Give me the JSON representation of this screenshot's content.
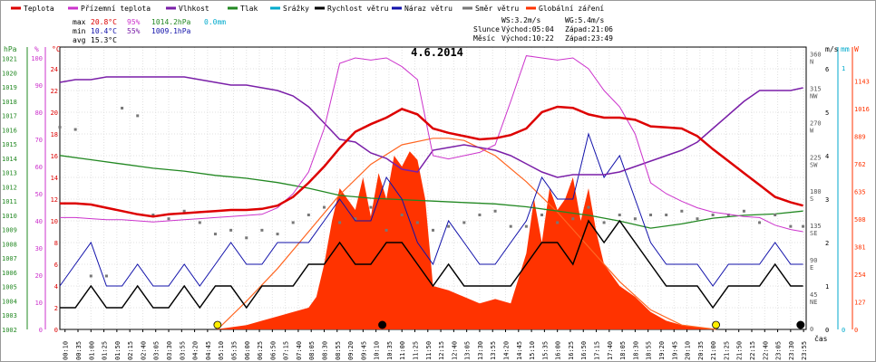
{
  "chart_data": {
    "type": "line",
    "title": "4.6.2014",
    "legend": {
      "placement": "top",
      "items": [
        {
          "key": "temp",
          "label": "Teplota",
          "color": "#dd0000"
        },
        {
          "key": "feel",
          "label": "Přízemní teplota",
          "color": "#cc33cc"
        },
        {
          "key": "hum",
          "label": "Vlhkost",
          "color": "#7a1fa8"
        },
        {
          "key": "press",
          "label": "Tlak",
          "color": "#228822"
        },
        {
          "key": "rain",
          "label": "Srážky",
          "color": "#00aacc"
        },
        {
          "key": "wind",
          "label": "Rychlost větru",
          "color": "#000000"
        },
        {
          "key": "gust",
          "label": "Náraz větru",
          "color": "#1111aa"
        },
        {
          "key": "dir",
          "label": "Směr větru",
          "color": "#777777"
        },
        {
          "key": "solar",
          "label": "Globální záření",
          "color": "#ff3300"
        }
      ]
    },
    "stats": {
      "max_label": "max",
      "max_temp": "20.8°C",
      "max_hum": "95%",
      "max_press": "1014.2hPa",
      "rain_total": "0.0mm",
      "min_label": "min",
      "min_temp": "10.4°C",
      "min_hum": "55%",
      "min_press": "1009.1hPa",
      "avg_label": "avg",
      "avg_temp": "15.3°C"
    },
    "sun_moon": {
      "ws": "WS:3.2m/s",
      "wg": "WG:5.4m/s",
      "sun_label": "Slunce",
      "sun_rise": "Východ:05:04",
      "sun_set": "Západ:21:06",
      "moon_label": "Měsíc",
      "moon_rise": "Východ:10:22",
      "moon_set": "Západ:23:49"
    },
    "axes": {
      "hpa_label": "hPa",
      "hum_label": "%",
      "temp_label": "°C",
      "wind_label": "m/s",
      "rain_label": "mm",
      "solar_label": "W",
      "time_label": "čas",
      "hpa_ticks": [
        "1002",
        "1003",
        "1004",
        "1005",
        "1006",
        "1007",
        "1008",
        "1009",
        "1010",
        "1011",
        "1012",
        "1013",
        "1014",
        "1015",
        "1016",
        "1017",
        "1018",
        "1019",
        "1020",
        "1021"
      ],
      "hum_ticks": [
        "0",
        "10",
        "20",
        "30",
        "40",
        "50",
        "60",
        "70",
        "80",
        "90",
        "100"
      ],
      "temp_ticks": [
        "0",
        "2",
        "4",
        "6",
        "8",
        "10",
        "12",
        "14",
        "16",
        "18",
        "20",
        "22",
        "24"
      ],
      "dir_ticks": [
        {
          "deg": "360",
          "dir": "N"
        },
        {
          "deg": "315",
          "dir": "NW"
        },
        {
          "deg": "270",
          "dir": "W"
        },
        {
          "deg": "225",
          "dir": "SW"
        },
        {
          "deg": "180",
          "dir": "S"
        },
        {
          "deg": "135",
          "dir": "SE"
        },
        {
          "deg": "90",
          "dir": "E"
        },
        {
          "deg": "45",
          "dir": "NE"
        },
        {
          "deg": "0",
          "dir": ""
        }
      ],
      "wind_ticks": [
        "0",
        "1",
        "2",
        "3",
        "4",
        "5",
        "6"
      ],
      "rain_ticks": [
        "0",
        "1"
      ],
      "solar_ticks": [
        "0",
        "127",
        "254",
        "381",
        "508",
        "635",
        "762",
        "889",
        "1016",
        "1143"
      ],
      "time_ticks": [
        "00:10",
        "00:35",
        "01:00",
        "01:25",
        "01:50",
        "02:15",
        "02:40",
        "03:05",
        "03:30",
        "03:55",
        "04:20",
        "04:45",
        "05:10",
        "05:35",
        "06:00",
        "06:25",
        "06:50",
        "07:15",
        "07:40",
        "08:05",
        "08:30",
        "08:55",
        "09:20",
        "09:45",
        "10:10",
        "10:35",
        "11:00",
        "11:25",
        "11:50",
        "12:15",
        "12:40",
        "13:05",
        "13:30",
        "13:55",
        "14:20",
        "14:45",
        "15:10",
        "15:35",
        "16:00",
        "16:25",
        "16:50",
        "17:15",
        "17:40",
        "18:05",
        "18:30",
        "18:55",
        "19:20",
        "19:45",
        "20:10",
        "20:35",
        "21:00",
        "21:25",
        "21:50",
        "22:15",
        "22:40",
        "23:05",
        "23:30",
        "23:55"
      ]
    },
    "series": [
      {
        "key": "temp",
        "name": "Teplota",
        "unit": "°C",
        "x_hours": [
          0,
          0.5,
          1,
          1.5,
          2,
          2.5,
          3,
          3.5,
          4,
          4.5,
          5,
          5.5,
          6,
          6.5,
          7,
          7.5,
          8,
          8.5,
          9,
          9.5,
          10,
          10.5,
          11,
          11.5,
          12,
          12.5,
          13,
          13.5,
          14,
          14.5,
          15,
          15.5,
          16,
          16.5,
          17,
          17.5,
          18,
          18.5,
          19,
          19.5,
          20,
          20.5,
          21,
          21.5,
          22,
          22.5,
          23,
          23.5,
          23.9
        ],
        "values": [
          11.6,
          11.6,
          11.5,
          11.2,
          10.9,
          10.6,
          10.4,
          10.6,
          10.7,
          10.8,
          10.9,
          11.0,
          11.0,
          11.1,
          11.4,
          12.2,
          13.5,
          15.0,
          16.7,
          18.2,
          18.9,
          19.5,
          20.3,
          19.8,
          18.5,
          18.1,
          17.8,
          17.5,
          17.6,
          17.9,
          18.5,
          20.0,
          20.5,
          20.4,
          19.8,
          19.5,
          19.5,
          19.3,
          18.7,
          18.6,
          18.5,
          17.8,
          16.6,
          15.5,
          14.4,
          13.3,
          12.2,
          11.7,
          11.4
        ]
      },
      {
        "key": "feel",
        "name": "Přízemní teplota",
        "unit": "°C",
        "x_hours": [
          0,
          0.5,
          1,
          1.5,
          2,
          2.5,
          3,
          3.5,
          4,
          4.5,
          5,
          5.5,
          6,
          6.5,
          7,
          7.5,
          8,
          8.5,
          9,
          9.5,
          10,
          10.5,
          11,
          11.5,
          12,
          12.5,
          13,
          13.5,
          14,
          14.5,
          15,
          15.5,
          16,
          16.5,
          17,
          17.5,
          18,
          18.5,
          19,
          19.5,
          20,
          20.5,
          21,
          21.5,
          22,
          22.5,
          23,
          23.5,
          23.9
        ],
        "values": [
          10.3,
          10.3,
          10.2,
          10.1,
          10.1,
          10.0,
          9.9,
          10.0,
          10.1,
          10.2,
          10.3,
          10.4,
          10.5,
          10.6,
          11.2,
          12.5,
          14.5,
          18.5,
          24.5,
          25.0,
          24.8,
          25.0,
          24.2,
          23.0,
          16.0,
          15.7,
          16.0,
          16.3,
          17.0,
          21.0,
          25.2,
          25.0,
          24.8,
          25.0,
          24.0,
          22.0,
          20.5,
          18.0,
          13.5,
          12.5,
          11.8,
          11.2,
          10.8,
          10.6,
          10.4,
          10.3,
          9.6,
          9.2,
          9.0
        ]
      },
      {
        "key": "hum",
        "name": "Vlhkost",
        "unit": "%",
        "x_hours": [
          0,
          0.5,
          1,
          1.5,
          2,
          2.5,
          3,
          3.5,
          4,
          4.5,
          5,
          5.5,
          6,
          6.5,
          7,
          7.5,
          8,
          8.5,
          9,
          9.5,
          10,
          10.5,
          11,
          11.5,
          12,
          12.5,
          13,
          13.5,
          14,
          14.5,
          15,
          15.5,
          16,
          16.5,
          17,
          17.5,
          18,
          18.5,
          19,
          19.5,
          20,
          20.5,
          21,
          21.5,
          22,
          22.5,
          23,
          23.5,
          23.9
        ],
        "values": [
          91,
          92,
          92,
          93,
          93,
          93,
          93,
          93,
          93,
          92,
          91,
          90,
          90,
          89,
          88,
          86,
          82,
          76,
          70,
          69,
          65,
          63,
          59,
          58,
          66,
          67,
          68,
          67,
          66,
          64,
          61,
          58,
          56,
          57,
          57,
          57,
          58,
          60,
          62,
          64,
          66,
          69,
          74,
          79,
          84,
          88,
          88,
          88,
          89
        ]
      },
      {
        "key": "press",
        "name": "Tlak",
        "unit": "hPa",
        "x_hours": [
          0,
          1,
          2,
          3,
          4,
          5,
          6,
          7,
          8,
          9,
          10,
          11,
          12,
          13,
          14,
          15,
          16,
          17,
          18,
          19,
          20,
          21,
          22,
          23,
          23.9
        ],
        "values": [
          1014.2,
          1013.9,
          1013.6,
          1013.3,
          1013.1,
          1012.8,
          1012.6,
          1012.3,
          1011.9,
          1011.4,
          1011.2,
          1011.1,
          1011.0,
          1010.9,
          1010.8,
          1010.6,
          1010.3,
          1010.0,
          1009.6,
          1009.1,
          1009.4,
          1009.8,
          1010.0,
          1010.1,
          1010.3
        ]
      },
      {
        "key": "wind",
        "name": "Rychlost větru",
        "unit": "m/s",
        "x_hours": [
          0,
          0.5,
          1,
          1.5,
          2,
          2.5,
          3,
          3.5,
          4,
          4.5,
          5,
          5.5,
          6,
          6.5,
          7,
          7.5,
          8,
          8.5,
          9,
          9.5,
          10,
          10.5,
          11,
          11.5,
          12,
          12.5,
          13,
          13.5,
          14,
          14.5,
          15,
          15.5,
          16,
          16.5,
          17,
          17.5,
          18,
          18.5,
          19,
          19.5,
          20,
          20.5,
          21,
          21.5,
          22,
          22.5,
          23,
          23.5,
          23.9
        ],
        "values": [
          0.5,
          0.5,
          1.0,
          0.5,
          0.5,
          1.0,
          0.5,
          0.5,
          1.0,
          0.5,
          1.0,
          1.0,
          0.5,
          1.0,
          1.0,
          1.0,
          1.5,
          1.5,
          2.0,
          1.5,
          1.5,
          2.0,
          2.0,
          1.5,
          1.0,
          1.5,
          1.0,
          1.0,
          1.0,
          1.0,
          1.5,
          2.0,
          2.0,
          1.5,
          2.5,
          2.0,
          2.5,
          2.0,
          1.5,
          1.0,
          1.0,
          1.0,
          0.5,
          1.0,
          1.0,
          1.0,
          1.5,
          1.0,
          1.0
        ]
      },
      {
        "key": "gust",
        "name": "Náraz větru",
        "unit": "m/s",
        "x_hours": [
          0,
          0.5,
          1,
          1.5,
          2,
          2.5,
          3,
          3.5,
          4,
          4.5,
          5,
          5.5,
          6,
          6.5,
          7,
          7.5,
          8,
          8.5,
          9,
          9.5,
          10,
          10.5,
          11,
          11.5,
          12,
          12.5,
          13,
          13.5,
          14,
          14.5,
          15,
          15.5,
          16,
          16.5,
          17,
          17.5,
          18,
          18.5,
          19,
          19.5,
          20,
          20.5,
          21,
          21.5,
          22,
          22.5,
          23,
          23.5,
          23.9
        ],
        "values": [
          1.0,
          1.5,
          2.0,
          1.0,
          1.0,
          1.5,
          1.0,
          1.0,
          1.5,
          1.0,
          1.5,
          2.0,
          1.5,
          1.5,
          2.0,
          2.0,
          2.0,
          2.5,
          3.0,
          2.5,
          2.5,
          3.5,
          3.0,
          2.0,
          1.5,
          2.5,
          2.0,
          1.5,
          1.5,
          2.0,
          2.5,
          3.5,
          3.0,
          3.0,
          4.5,
          3.5,
          4.0,
          3.0,
          2.0,
          1.5,
          1.5,
          1.5,
          1.0,
          1.5,
          1.5,
          1.5,
          2.0,
          1.5,
          1.5
        ]
      },
      {
        "key": "dir",
        "name": "Směr větru",
        "unit": "°",
        "x_hours": [
          0,
          0.5,
          1,
          1.5,
          2,
          2.5,
          3,
          3.5,
          4,
          4.5,
          5,
          5.5,
          6,
          6.5,
          7,
          7.5,
          8,
          8.5,
          9,
          9.5,
          10,
          10.5,
          11,
          11.5,
          12,
          12.5,
          13,
          13.5,
          14,
          14.5,
          15,
          15.5,
          16,
          16.5,
          17,
          17.5,
          18,
          18.5,
          19,
          19.5,
          20,
          20.5,
          21,
          21.5,
          22,
          22.5,
          23,
          23.5,
          23.9
        ],
        "values": [
          265,
          262,
          70,
          70,
          290,
          280,
          150,
          145,
          155,
          140,
          125,
          130,
          120,
          130,
          125,
          140,
          150,
          160,
          140,
          145,
          160,
          130,
          150,
          140,
          130,
          135,
          140,
          150,
          155,
          135,
          135,
          150,
          140,
          145,
          160,
          140,
          150,
          145,
          150,
          150,
          155,
          145,
          150,
          150,
          155,
          140,
          150,
          135,
          135
        ]
      },
      {
        "key": "solar",
        "name": "Globální záření",
        "unit": "W",
        "x_hours": [
          0,
          5,
          5.5,
          6,
          6.5,
          7,
          7.5,
          8,
          8.25,
          8.5,
          8.75,
          9,
          9.25,
          9.5,
          9.75,
          10,
          10.25,
          10.5,
          10.75,
          11,
          11.25,
          11.5,
          11.75,
          12,
          12.5,
          13,
          13.5,
          14,
          14.5,
          15,
          15.25,
          15.5,
          15.75,
          16,
          16.25,
          16.5,
          16.75,
          17,
          17.25,
          17.5,
          18,
          18.5,
          19,
          19.5,
          20,
          20.5,
          21,
          23.9
        ],
        "values": [
          0,
          0,
          10,
          20,
          40,
          60,
          80,
          100,
          150,
          300,
          500,
          650,
          600,
          550,
          700,
          520,
          720,
          600,
          800,
          750,
          820,
          780,
          600,
          200,
          180,
          150,
          120,
          140,
          120,
          350,
          600,
          400,
          650,
          550,
          600,
          700,
          500,
          650,
          450,
          300,
          200,
          150,
          80,
          40,
          20,
          10,
          0,
          0
        ]
      },
      {
        "key": "clear_sky",
        "name": "",
        "unit": "W",
        "x_hours": [
          5.07,
          6,
          7,
          8,
          9,
          10,
          11,
          12,
          12.5,
          13,
          14,
          15,
          16,
          17,
          18,
          19,
          20,
          21.1
        ],
        "values": [
          0,
          130,
          280,
          450,
          620,
          760,
          850,
          880,
          880,
          870,
          800,
          680,
          540,
          380,
          220,
          90,
          20,
          0
        ]
      }
    ],
    "markers": {
      "sun_rise_h": 5.07,
      "sun_set_h": 21.1,
      "moon_rise_h": 10.37,
      "moon_set_h": 23.82
    },
    "ranges": {
      "temp": [
        0,
        26
      ],
      "hum": [
        0,
        104
      ],
      "press": [
        1002,
        1021.8
      ],
      "wind": [
        0,
        6.5
      ],
      "solar": [
        0,
        1300
      ],
      "dir": [
        0,
        370
      ],
      "rain": [
        0,
        1.3
      ],
      "hours": [
        0,
        24
      ]
    }
  }
}
